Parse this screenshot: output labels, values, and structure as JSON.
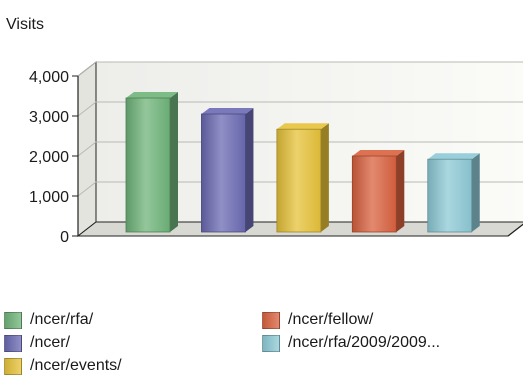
{
  "chart_data": {
    "type": "bar",
    "title": "Visits",
    "categories": [
      "/ncer/rfa/",
      "/ncer/",
      "/ncer/events/",
      "/ncer/fellow/",
      "/ncer/rfa/2009/2009..."
    ],
    "values": [
      3350,
      2950,
      2570,
      1900,
      1820
    ],
    "ylim": [
      0,
      4000
    ],
    "yticks": [
      "0",
      "1,000",
      "2,000",
      "3,000",
      "4,000"
    ],
    "grid": true,
    "legend_position": "bottom",
    "colors": [
      "#6fb47a",
      "#6b6ab3",
      "#e6c239",
      "#d9623f",
      "#8dcad6"
    ]
  }
}
